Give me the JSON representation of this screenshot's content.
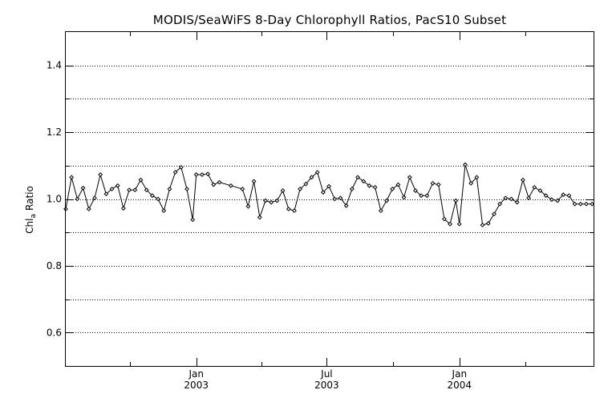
{
  "chart_data": {
    "type": "line",
    "title": "MODIS/SeaWiFS 8-Day Chlorophyll Ratios, PacS10 Subset",
    "ylabel_main": "Chl",
    "ylabel_sub": "a",
    "ylabel_rest": "Ratio",
    "xlabel": "",
    "ylim": [
      0.5,
      1.5
    ],
    "yticks_major": [
      0.6,
      0.8,
      1.0,
      1.2,
      1.4
    ],
    "ytick_labels": [
      "0.6",
      "0.8",
      "1.0",
      "1.2",
      "1.4"
    ],
    "y_gridlines": [
      0.6,
      0.7,
      0.8,
      0.9,
      1.0,
      1.1,
      1.2,
      1.3,
      1.4
    ],
    "grid": "horizontal dotted",
    "xlim": [
      "2002-07-04",
      "2004-07-05"
    ],
    "xticks_minor": [
      "2002-10-01",
      "2003-04-01",
      "2003-10-01",
      "2004-04-01"
    ],
    "xticks_major": [
      {
        "date": "2003-01-01",
        "month": "Jan",
        "year": "2003"
      },
      {
        "date": "2003-07-01",
        "month": "Jul",
        "year": "2003"
      },
      {
        "date": "2004-01-01",
        "month": "Jan",
        "year": "2004"
      }
    ],
    "series": [
      {
        "x": [
          "2002-07-04",
          "2002-07-12",
          "2002-07-20",
          "2002-07-28",
          "2002-08-05",
          "2002-08-13",
          "2002-08-21",
          "2002-08-29",
          "2002-09-06",
          "2002-09-14",
          "2002-09-22",
          "2002-09-30",
          "2002-10-08",
          "2002-10-16",
          "2002-10-24",
          "2002-11-01",
          "2002-11-09",
          "2002-11-17",
          "2002-11-25",
          "2002-12-03",
          "2002-12-11",
          "2002-12-19",
          "2002-12-27",
          "2003-01-01",
          "2003-01-09",
          "2003-01-17",
          "2003-01-25",
          "2003-02-02",
          "2003-02-18",
          "2003-03-06",
          "2003-03-14",
          "2003-03-22",
          "2003-03-30",
          "2003-04-07",
          "2003-04-15",
          "2003-04-23",
          "2003-05-01",
          "2003-05-09",
          "2003-05-17",
          "2003-05-25",
          "2003-06-02",
          "2003-06-10",
          "2003-06-18",
          "2003-06-26",
          "2003-07-04",
          "2003-07-12",
          "2003-07-20",
          "2003-07-28",
          "2003-08-05",
          "2003-08-13",
          "2003-08-21",
          "2003-08-29",
          "2003-09-06",
          "2003-09-14",
          "2003-09-22",
          "2003-09-30",
          "2003-10-08",
          "2003-10-16",
          "2003-10-24",
          "2003-11-01",
          "2003-11-09",
          "2003-11-17",
          "2003-11-25",
          "2003-12-03",
          "2003-12-11",
          "2003-12-19",
          "2003-12-27",
          "2004-01-01",
          "2004-01-09",
          "2004-01-17",
          "2004-01-25",
          "2004-02-02",
          "2004-02-10",
          "2004-02-18",
          "2004-02-26",
          "2004-03-05",
          "2004-03-13",
          "2004-03-21",
          "2004-03-29",
          "2004-04-06",
          "2004-04-14",
          "2004-04-22",
          "2004-04-30",
          "2004-05-08",
          "2004-05-16",
          "2004-05-24",
          "2004-06-01",
          "2004-06-09",
          "2004-06-17",
          "2004-06-25",
          "2004-07-03"
        ],
        "y": [
          0.97,
          1.065,
          1.0,
          1.033,
          0.97,
          1.003,
          1.073,
          1.015,
          1.03,
          1.04,
          0.972,
          1.027,
          1.027,
          1.057,
          1.027,
          1.01,
          1.0,
          0.965,
          1.03,
          1.08,
          1.095,
          1.03,
          0.938,
          1.073,
          1.073,
          1.075,
          1.043,
          1.05,
          1.04,
          1.03,
          0.978,
          1.053,
          0.945,
          0.995,
          0.99,
          0.995,
          1.025,
          0.97,
          0.965,
          1.03,
          1.045,
          1.065,
          1.08,
          1.02,
          1.038,
          1.0,
          1.003,
          0.98,
          1.03,
          1.065,
          1.053,
          1.04,
          1.035,
          0.965,
          0.995,
          1.03,
          1.043,
          1.005,
          1.065,
          1.025,
          1.01,
          1.01,
          1.047,
          1.043,
          0.94,
          0.925,
          0.995,
          0.925,
          1.103,
          1.047,
          1.065,
          0.922,
          0.927,
          0.955,
          0.985,
          1.003,
          1.0,
          0.99,
          1.057,
          1.003,
          1.035,
          1.025,
          1.01,
          0.998,
          0.995,
          1.013,
          1.01,
          0.985,
          0.985,
          0.985,
          0.985
        ]
      }
    ]
  }
}
